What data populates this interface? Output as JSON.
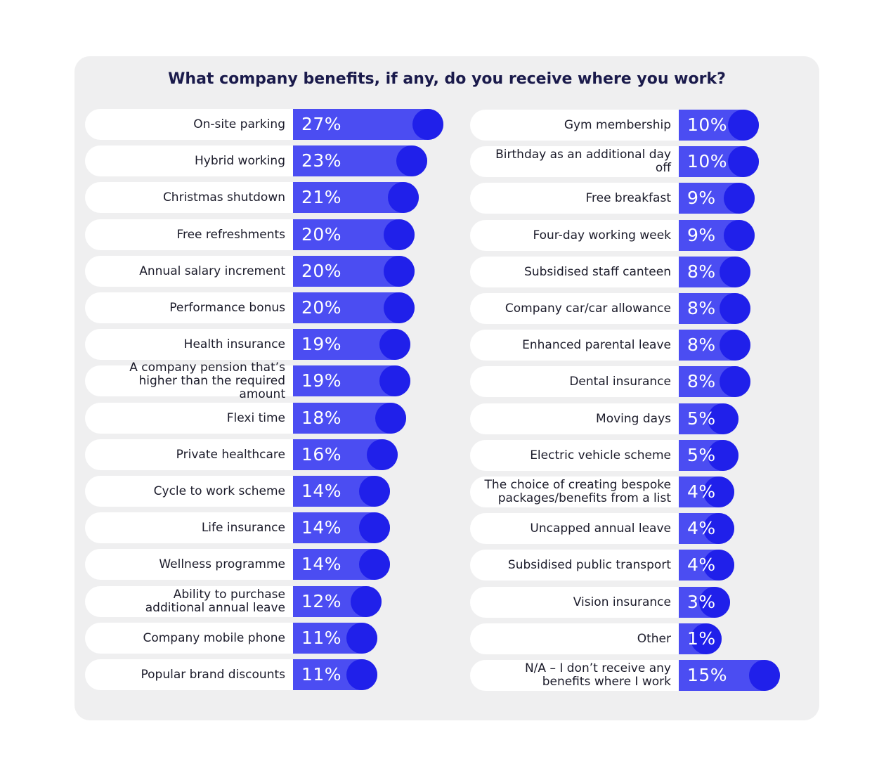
{
  "chart_data": {
    "type": "bar",
    "title": "What company benefits, if any, do you receive where you work?",
    "unit": "%",
    "categories": [
      "On-site parking",
      "Hybrid working",
      "Christmas shutdown",
      "Free refreshments",
      "Annual salary increment",
      "Performance bonus",
      "Health insurance",
      "A company pension that’s\nhigher than the required amount",
      "Flexi time",
      "Private healthcare",
      "Cycle to work scheme",
      "Life insurance",
      "Wellness programme",
      "Ability to purchase\nadditional annual leave",
      "Company mobile phone",
      "Popular brand discounts",
      "Gym membership",
      "Birthday as an additional day off",
      "Free breakfast",
      "Four-day working week",
      "Subsidised staff canteen",
      "Company car/car allowance",
      "Enhanced parental leave",
      "Dental insurance",
      "Moving days",
      "Electric vehicle scheme",
      "The choice of creating bespoke\npackages/benefits from a list",
      "Uncapped annual leave",
      "Subsidised public transport",
      "Vision insurance",
      "Other",
      "N/A – I don’t receive any\nbenefits where I work"
    ],
    "values": [
      27,
      23,
      21,
      20,
      20,
      20,
      19,
      19,
      18,
      16,
      14,
      14,
      14,
      12,
      11,
      11,
      10,
      10,
      9,
      9,
      8,
      8,
      8,
      8,
      5,
      5,
      4,
      4,
      4,
      3,
      1,
      15
    ],
    "value_labels": [
      "27%",
      "23%",
      "21%",
      "20%",
      "20%",
      "20%",
      "19%",
      "19%",
      "18%",
      "16%",
      "14%",
      "14%",
      "14%",
      "12%",
      "11%",
      "11%",
      "10%",
      "10%",
      "9%",
      "9%",
      "8%",
      "8%",
      "8%",
      "8%",
      "5%",
      "5%",
      "4%",
      "4%",
      "4%",
      "3%",
      "1%",
      "15%"
    ],
    "layout": "two columns of 16 bars each",
    "colors": {
      "bar": "#4b4df2",
      "bar_end": "#2020ea",
      "card": "#efeff0",
      "label_bg": "#ffffff",
      "title": "#1a1a4b"
    }
  }
}
